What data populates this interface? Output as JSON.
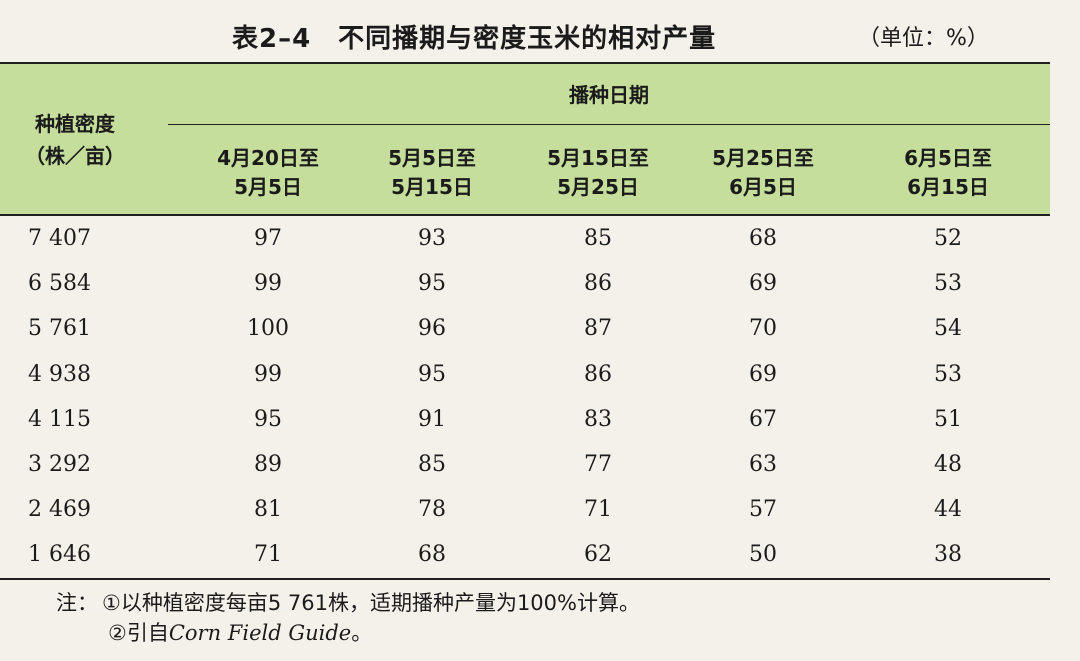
{
  "title": "表2–4　不同播期与密度玉米的相对产量",
  "unit": "（单位：%）",
  "table": {
    "row_header": [
      "种植密度",
      "（株／亩）"
    ],
    "group_header": "播种日期",
    "columns": [
      [
        "4月20日至",
        "5月5日"
      ],
      [
        "5月5日至",
        "5月15日"
      ],
      [
        "5月15日至",
        "5月25日"
      ],
      [
        "5月25日至",
        "6月5日"
      ],
      [
        "6月5日至",
        "6月15日"
      ]
    ],
    "rows": [
      {
        "density": "7 407",
        "values": [
          "97",
          "93",
          "85",
          "68",
          "52"
        ]
      },
      {
        "density": "6 584",
        "values": [
          "99",
          "95",
          "86",
          "69",
          "53"
        ]
      },
      {
        "density": "5 761",
        "values": [
          "100",
          "96",
          "87",
          "70",
          "54"
        ]
      },
      {
        "density": "4 938",
        "values": [
          "99",
          "95",
          "86",
          "69",
          "53"
        ]
      },
      {
        "density": "4 115",
        "values": [
          "95",
          "91",
          "83",
          "67",
          "51"
        ]
      },
      {
        "density": "3 292",
        "values": [
          "89",
          "85",
          "77",
          "63",
          "48"
        ]
      },
      {
        "density": "2 469",
        "values": [
          "81",
          "78",
          "71",
          "57",
          "44"
        ]
      },
      {
        "density": "1 646",
        "values": [
          "71",
          "68",
          "62",
          "50",
          "38"
        ]
      }
    ]
  },
  "notes": {
    "label": "注：",
    "line1": "①以种植密度每亩5 761株，适期播种产量为100%计算。",
    "line2_prefix": "②引自",
    "line2_italic": "Corn Field Guide",
    "line2_suffix": "。"
  },
  "colors": {
    "header_band": "#c5de9c",
    "paper": "#f4f1ea"
  }
}
